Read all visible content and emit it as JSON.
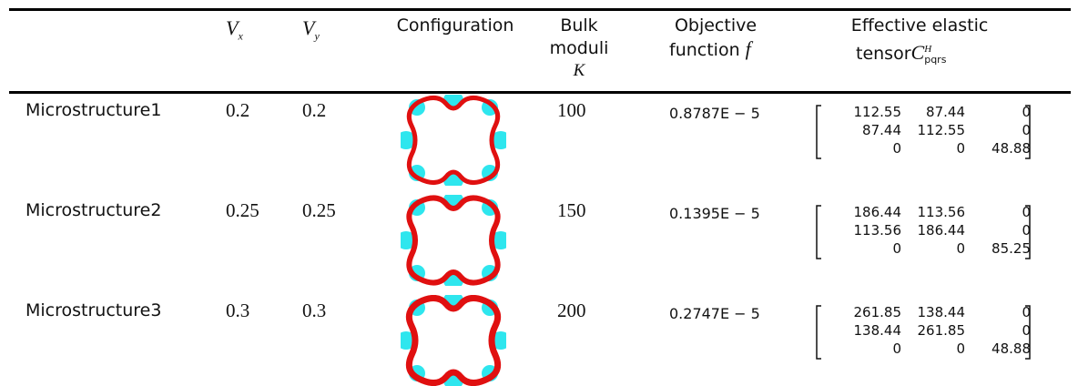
{
  "table": {
    "header": {
      "vx": {
        "symbol": "V",
        "sub": "x"
      },
      "vy": {
        "symbol": "V",
        "sub": "y"
      },
      "configuration": "Configuration",
      "bulk": {
        "lines": [
          "Bulk",
          "moduli"
        ],
        "symbol": "K"
      },
      "objective": {
        "lines": [
          "Objective",
          "function"
        ],
        "symbol": "f"
      },
      "tensor": {
        "lines": [
          "Effective elastic",
          "tensor"
        ],
        "symbol": "C",
        "sup": "H",
        "sub": "pqrs"
      }
    },
    "rows": [
      {
        "name": "Microstructure1",
        "vx": "0.2",
        "vy": "0.2",
        "k": "100",
        "f": "0.8787E − 5",
        "c": [
          [
            "112.55",
            "87.44",
            "0"
          ],
          [
            "87.44",
            "112.55",
            "0"
          ],
          [
            "0",
            "0",
            "48.88"
          ]
        ]
      },
      {
        "name": "Microstructure2",
        "vx": "0.25",
        "vy": "0.25",
        "k": "150",
        "f": "0.1395E − 5",
        "c": [
          [
            "186.44",
            "113.56",
            "0"
          ],
          [
            "113.56",
            "186.44",
            "0"
          ],
          [
            "0",
            "0",
            "85.25"
          ]
        ]
      },
      {
        "name": "Microstructure3",
        "vx": "0.3",
        "vy": "0.3",
        "k": "200",
        "f": "0.2747E − 5",
        "c": [
          [
            "261.85",
            "138.44",
            "0"
          ],
          [
            "138.44",
            "261.85",
            "0"
          ],
          [
            "0",
            "0",
            "48.88"
          ]
        ]
      }
    ]
  }
}
